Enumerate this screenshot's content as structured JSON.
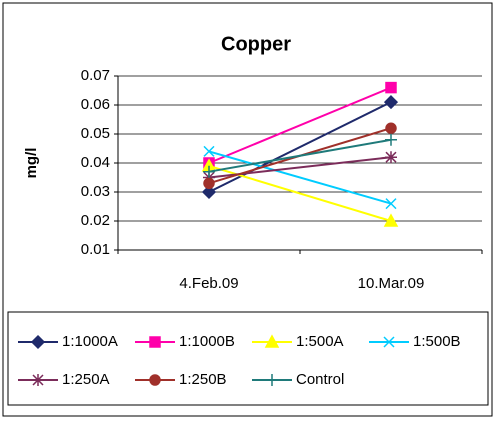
{
  "chart_data": {
    "type": "line",
    "title": "Copper",
    "y_label": "mg/l",
    "categories": [
      "4.Feb.09",
      "10.Mar.09"
    ],
    "ylim": [
      0.01,
      0.07
    ],
    "yticks": [
      0.01,
      0.02,
      0.03,
      0.04,
      0.05,
      0.06,
      0.07
    ],
    "grid": true,
    "series": [
      {
        "name": "1:1000A",
        "color": "#1f2a6b",
        "marker": "diamond",
        "values": [
          0.03,
          0.061
        ]
      },
      {
        "name": "1:1000B",
        "color": "#ff00aa",
        "marker": "square",
        "values": [
          0.04,
          0.066
        ]
      },
      {
        "name": "1:500A",
        "color": "#ffff00",
        "marker": "triangle",
        "values": [
          0.039,
          0.02
        ]
      },
      {
        "name": "1:500B",
        "color": "#00ccff",
        "marker": "x",
        "values": [
          0.044,
          0.026
        ]
      },
      {
        "name": "1:250A",
        "color": "#7b2c5a",
        "marker": "star",
        "values": [
          0.035,
          0.042
        ]
      },
      {
        "name": "1:250B",
        "color": "#a0302a",
        "marker": "circle",
        "values": [
          0.033,
          0.052
        ]
      },
      {
        "name": "Control",
        "color": "#1f7a7a",
        "marker": "plus",
        "values": [
          0.037,
          0.048
        ]
      }
    ]
  }
}
